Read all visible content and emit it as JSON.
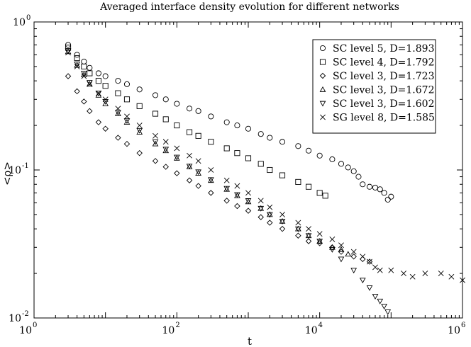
{
  "chart_data": {
    "type": "scatter",
    "title": "Averaged interface density evolution for different networks",
    "xlabel": "t",
    "ylabel": "<ρ>",
    "xscale": "log",
    "yscale": "log",
    "xlim": [
      1,
      1000000
    ],
    "ylim": [
      0.01,
      1
    ],
    "grid": false,
    "legend_position": "top-right",
    "x_ticks": [
      {
        "base": "10",
        "exp": "0",
        "value": 1
      },
      {
        "base": "10",
        "exp": "2",
        "value": 100
      },
      {
        "base": "10",
        "exp": "4",
        "value": 10000
      },
      {
        "base": "10",
        "exp": "6",
        "value": 1000000
      }
    ],
    "y_ticks": [
      {
        "base": "10",
        "exp": "-2",
        "value": 0.01
      },
      {
        "base": "10",
        "exp": "-1",
        "value": 0.1
      },
      {
        "base": "10",
        "exp": "0",
        "value": 1
      }
    ],
    "series": [
      {
        "name": "SC level 5, D=1.893",
        "marker": "circle",
        "points": [
          [
            3,
            0.7
          ],
          [
            4,
            0.6
          ],
          [
            5,
            0.54
          ],
          [
            6,
            0.49
          ],
          [
            8,
            0.45
          ],
          [
            10,
            0.43
          ],
          [
            15,
            0.4
          ],
          [
            20,
            0.38
          ],
          [
            30,
            0.35
          ],
          [
            50,
            0.32
          ],
          [
            70,
            0.3
          ],
          [
            100,
            0.28
          ],
          [
            150,
            0.26
          ],
          [
            200,
            0.25
          ],
          [
            300,
            0.23
          ],
          [
            500,
            0.21
          ],
          [
            700,
            0.2
          ],
          [
            1000,
            0.19
          ],
          [
            1500,
            0.175
          ],
          [
            2000,
            0.165
          ],
          [
            3000,
            0.155
          ],
          [
            5000,
            0.145
          ],
          [
            7000,
            0.135
          ],
          [
            10000,
            0.125
          ],
          [
            15000,
            0.118
          ],
          [
            20000,
            0.11
          ],
          [
            25000,
            0.104
          ],
          [
            30000,
            0.098
          ],
          [
            35000,
            0.09
          ],
          [
            40000,
            0.08
          ],
          [
            50000,
            0.077
          ],
          [
            60000,
            0.076
          ],
          [
            70000,
            0.074
          ],
          [
            80000,
            0.07
          ],
          [
            90000,
            0.063
          ],
          [
            100000,
            0.066
          ]
        ]
      },
      {
        "name": "SC level 4, D=1.792",
        "marker": "square",
        "points": [
          [
            3,
            0.67
          ],
          [
            4,
            0.57
          ],
          [
            5,
            0.5
          ],
          [
            6,
            0.45
          ],
          [
            8,
            0.4
          ],
          [
            10,
            0.37
          ],
          [
            15,
            0.33
          ],
          [
            20,
            0.3
          ],
          [
            30,
            0.27
          ],
          [
            50,
            0.24
          ],
          [
            70,
            0.22
          ],
          [
            100,
            0.2
          ],
          [
            150,
            0.18
          ],
          [
            200,
            0.17
          ],
          [
            300,
            0.155
          ],
          [
            500,
            0.14
          ],
          [
            700,
            0.13
          ],
          [
            1000,
            0.12
          ],
          [
            1500,
            0.11
          ],
          [
            2000,
            0.1
          ],
          [
            3000,
            0.092
          ],
          [
            5000,
            0.083
          ],
          [
            7000,
            0.077
          ],
          [
            10000,
            0.07
          ],
          [
            12000,
            0.067
          ]
        ]
      },
      {
        "name": "SC level 3, D=1.723",
        "marker": "diamond",
        "points": [
          [
            3,
            0.43
          ],
          [
            4,
            0.34
          ],
          [
            5,
            0.29
          ],
          [
            6,
            0.25
          ],
          [
            8,
            0.21
          ],
          [
            10,
            0.19
          ],
          [
            15,
            0.165
          ],
          [
            20,
            0.15
          ],
          [
            30,
            0.13
          ],
          [
            50,
            0.115
          ],
          [
            70,
            0.105
          ],
          [
            100,
            0.095
          ],
          [
            150,
            0.085
          ],
          [
            200,
            0.078
          ],
          [
            300,
            0.07
          ],
          [
            500,
            0.062
          ],
          [
            700,
            0.057
          ],
          [
            1000,
            0.053
          ],
          [
            1500,
            0.048
          ],
          [
            2000,
            0.044
          ],
          [
            3000,
            0.04
          ],
          [
            5000,
            0.036
          ],
          [
            7000,
            0.033
          ],
          [
            10000,
            0.032
          ],
          [
            15000,
            0.03
          ],
          [
            20000,
            0.028
          ],
          [
            30000,
            0.026
          ],
          [
            40000,
            0.025
          ],
          [
            50000,
            0.024
          ]
        ]
      },
      {
        "name": "SC level 3, D=1.672",
        "marker": "triangle-up",
        "points": [
          [
            3,
            0.63
          ],
          [
            4,
            0.51
          ],
          [
            5,
            0.44
          ],
          [
            6,
            0.38
          ],
          [
            8,
            0.32
          ],
          [
            10,
            0.28
          ],
          [
            15,
            0.24
          ],
          [
            20,
            0.21
          ],
          [
            30,
            0.18
          ],
          [
            50,
            0.15
          ],
          [
            70,
            0.135
          ],
          [
            100,
            0.12
          ],
          [
            150,
            0.105
          ],
          [
            200,
            0.095
          ],
          [
            300,
            0.085
          ],
          [
            500,
            0.074
          ],
          [
            700,
            0.067
          ],
          [
            1000,
            0.061
          ],
          [
            1500,
            0.055
          ],
          [
            2000,
            0.05
          ],
          [
            3000,
            0.045
          ],
          [
            5000,
            0.04
          ],
          [
            7000,
            0.036
          ],
          [
            10000,
            0.033
          ],
          [
            15000,
            0.03
          ],
          [
            20000,
            0.029
          ],
          [
            25000,
            0.027
          ]
        ]
      },
      {
        "name": "SC level 3, D=1.602",
        "marker": "triangle-down",
        "points": [
          [
            3,
            0.64
          ],
          [
            4,
            0.52
          ],
          [
            5,
            0.45
          ],
          [
            6,
            0.39
          ],
          [
            8,
            0.33
          ],
          [
            10,
            0.29
          ],
          [
            15,
            0.245
          ],
          [
            20,
            0.215
          ],
          [
            30,
            0.185
          ],
          [
            50,
            0.155
          ],
          [
            70,
            0.138
          ],
          [
            100,
            0.122
          ],
          [
            150,
            0.106
          ],
          [
            200,
            0.097
          ],
          [
            300,
            0.086
          ],
          [
            500,
            0.075
          ],
          [
            700,
            0.068
          ],
          [
            1000,
            0.062
          ],
          [
            1500,
            0.055
          ],
          [
            2000,
            0.05
          ],
          [
            3000,
            0.045
          ],
          [
            5000,
            0.04
          ],
          [
            7000,
            0.036
          ],
          [
            10000,
            0.033
          ],
          [
            15000,
            0.029
          ],
          [
            20000,
            0.025
          ],
          [
            30000,
            0.021
          ],
          [
            40000,
            0.018
          ],
          [
            50000,
            0.016
          ],
          [
            60000,
            0.014
          ],
          [
            70000,
            0.013
          ],
          [
            80000,
            0.012
          ],
          [
            90000,
            0.011
          ]
        ]
      },
      {
        "name": "SG level 8, D=1.585",
        "marker": "cross",
        "points": [
          [
            3,
            0.62
          ],
          [
            4,
            0.5
          ],
          [
            5,
            0.43
          ],
          [
            6,
            0.38
          ],
          [
            8,
            0.33
          ],
          [
            10,
            0.3
          ],
          [
            15,
            0.26
          ],
          [
            20,
            0.23
          ],
          [
            30,
            0.2
          ],
          [
            50,
            0.17
          ],
          [
            70,
            0.155
          ],
          [
            100,
            0.14
          ],
          [
            150,
            0.125
          ],
          [
            200,
            0.115
          ],
          [
            300,
            0.1
          ],
          [
            500,
            0.085
          ],
          [
            700,
            0.078
          ],
          [
            1000,
            0.07
          ],
          [
            1500,
            0.062
          ],
          [
            2000,
            0.056
          ],
          [
            3000,
            0.05
          ],
          [
            5000,
            0.044
          ],
          [
            7000,
            0.04
          ],
          [
            10000,
            0.037
          ],
          [
            15000,
            0.034
          ],
          [
            20000,
            0.031
          ],
          [
            30000,
            0.028
          ],
          [
            40000,
            0.026
          ],
          [
            50000,
            0.024
          ],
          [
            60000,
            0.022
          ],
          [
            70000,
            0.021
          ],
          [
            100000,
            0.021
          ],
          [
            150000,
            0.02
          ],
          [
            200000,
            0.019
          ],
          [
            300000,
            0.02
          ],
          [
            500000,
            0.02
          ],
          [
            700000,
            0.019
          ],
          [
            1000000,
            0.018
          ]
        ]
      }
    ]
  }
}
